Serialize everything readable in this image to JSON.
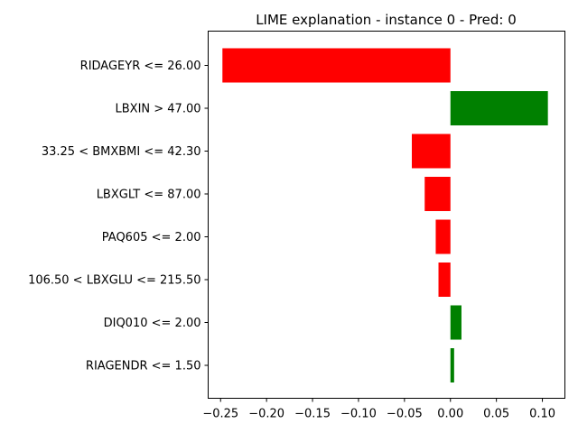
{
  "chart_data": {
    "type": "bar",
    "orientation": "horizontal",
    "title": "LIME explanation - instance 0 - Pred: 0",
    "xlabel": "",
    "ylabel": "",
    "xlim": [
      -0.2635,
      0.1245
    ],
    "categories": [
      "RIDAGEYR <= 26.00",
      "LBXIN > 47.00",
      "33.25 < BMXBMI <= 42.30",
      "LBXGLT <= 87.00",
      "PAQ605 <= 2.00",
      "106.50 < LBXGLU <= 215.50",
      "DIQ010 <= 2.00",
      "RIAGENDR <= 1.50"
    ],
    "values": [
      -0.248,
      0.106,
      -0.042,
      -0.028,
      -0.016,
      -0.013,
      0.012,
      0.004
    ],
    "xticks": [
      -0.25,
      -0.2,
      -0.15,
      -0.1,
      -0.05,
      0.0,
      0.05,
      0.1
    ],
    "xtick_labels": [
      "−0.25",
      "−0.20",
      "−0.15",
      "−0.10",
      "−0.05",
      "0.00",
      "0.05",
      "0.10"
    ],
    "colors": {
      "negative": "#ff0000",
      "positive": "#008000"
    },
    "grid": false,
    "legend": "none"
  }
}
